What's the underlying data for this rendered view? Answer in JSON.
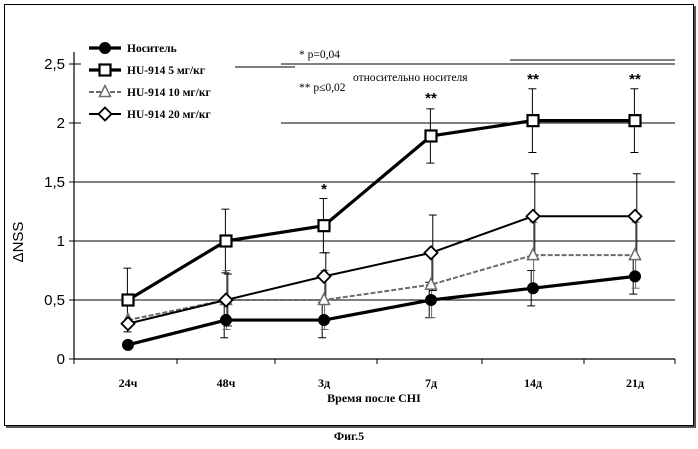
{
  "figure_caption": "Фиг.5",
  "annotations": {
    "p1": "* p=0,04",
    "p2": "** p≤0,02",
    "relative": "относительно носителя"
  },
  "chart_data": {
    "type": "line",
    "title": "",
    "xlabel": "Время после CHI",
    "ylabel": "ΔNSS",
    "categories": [
      "24ч",
      "48ч",
      "3д",
      "7д",
      "14д",
      "21д"
    ],
    "ylim": [
      0,
      2.5
    ],
    "yticks": [
      "0",
      "0,5",
      "1",
      "1,5",
      "2",
      "2,5"
    ],
    "grid": "horizontal",
    "legend_position": "top-left",
    "series": [
      {
        "name": "Носитель",
        "marker": "circle",
        "color": "#000000",
        "line_style": "solid-thick",
        "values": [
          0.12,
          0.33,
          0.33,
          0.5,
          0.6,
          0.7
        ],
        "errors": [
          null,
          0.15,
          0.15,
          0.15,
          0.15,
          0.15
        ]
      },
      {
        "name": "HU-914 5 мг/кг",
        "marker": "square",
        "color": "#000000",
        "line_style": "solid-thick",
        "values": [
          0.5,
          1.0,
          1.13,
          1.89,
          2.02,
          2.02
        ],
        "errors": [
          0.27,
          0.27,
          0.23,
          0.23,
          0.27,
          0.27
        ]
      },
      {
        "name": "HU-914 10 мг/кг",
        "marker": "triangle",
        "color": "#6b6b6b",
        "line_style": "dashed-grey",
        "values": [
          0.33,
          0.5,
          0.5,
          0.63,
          0.88,
          0.88
        ],
        "errors": [
          null,
          0.25,
          0.25,
          0.28,
          0.28,
          0.28
        ]
      },
      {
        "name": "HU-914 20 мг/кг",
        "marker": "diamond",
        "color": "#000000",
        "line_style": "solid",
        "values": [
          0.3,
          0.5,
          0.7,
          0.9,
          1.21,
          1.21
        ],
        "errors": [
          null,
          0.22,
          0.2,
          0.32,
          0.36,
          0.36
        ]
      }
    ],
    "significance": [
      {
        "category": "3д",
        "label": "*",
        "y": 1.45
      },
      {
        "category": "7д",
        "label": "**",
        "y": 2.22
      },
      {
        "category": "14д",
        "label": "**",
        "y": 2.38
      },
      {
        "category": "21д",
        "label": "**",
        "y": 2.38
      }
    ]
  }
}
